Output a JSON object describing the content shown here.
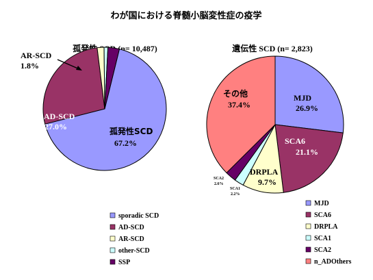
{
  "title": "わが国における脊髄小脳変性症の疫学",
  "colors": {
    "sporadic": "#9999ff",
    "ad": "#993366",
    "ar": "#ffffcc",
    "other": "#ccffff",
    "ssp": "#660066",
    "mjd": "#9999ff",
    "sca6": "#993366",
    "drpla": "#ffffcc",
    "sca1": "#ccffff",
    "sca2": "#660066",
    "others": "#ff8080"
  },
  "chart_data": [
    {
      "type": "pie",
      "title": "孤発性 SCD (n= 10,487)",
      "slices": [
        {
          "name": "sporadic SCD",
          "value": 67.2,
          "color_key": "sporadic"
        },
        {
          "name": "AD-SCD",
          "value": 27.0,
          "color_key": "ad"
        },
        {
          "name": "AR-SCD",
          "value": 1.8,
          "color_key": "ar"
        },
        {
          "name": "other-SCD",
          "value": 1.0,
          "color_key": "other"
        },
        {
          "name": "SSP",
          "value": 3.0,
          "color_key": "ssp"
        }
      ],
      "labels": [
        {
          "line1": "孤発性SCD",
          "line2": "67.2%"
        },
        {
          "line1": "AD-SCD",
          "line2": "27.0%"
        },
        {
          "line1": "AR-SCD",
          "line2": "1.8%"
        }
      ],
      "legend": [
        "sporadic SCD",
        "AD-SCD",
        "AR-SCD",
        "other-SCD",
        "SSP"
      ],
      "legend_position": "bottom"
    },
    {
      "type": "pie",
      "title": "遺伝性 SCD (n= 2,823)",
      "slices": [
        {
          "name": "MJD",
          "value": 26.9,
          "color_key": "mjd"
        },
        {
          "name": "SCA6",
          "value": 21.1,
          "color_key": "sca6"
        },
        {
          "name": "DRPLA",
          "value": 9.7,
          "color_key": "drpla"
        },
        {
          "name": "SCA1",
          "value": 2.2,
          "color_key": "sca1"
        },
        {
          "name": "SCA2",
          "value": 2.6,
          "color_key": "sca2"
        },
        {
          "name": "n_ADOthers",
          "value": 37.4,
          "color_key": "others"
        }
      ],
      "labels": [
        {
          "line1": "MJD",
          "line2": "26.9%"
        },
        {
          "line1": "SCA6",
          "line2": "21.1%"
        },
        {
          "line1": "DRPLA",
          "line2": "9.7%"
        },
        {
          "line1": "SCA1",
          "line2": "2.2%"
        },
        {
          "line1": "SCA2",
          "line2": "2.6%"
        },
        {
          "line1": "その他",
          "line2": "37.4%"
        }
      ],
      "legend": [
        "MJD",
        "SCA6",
        "DRPLA",
        "SCA1",
        "SCA2",
        "n_ADOthers"
      ],
      "legend_position": "bottom"
    }
  ]
}
